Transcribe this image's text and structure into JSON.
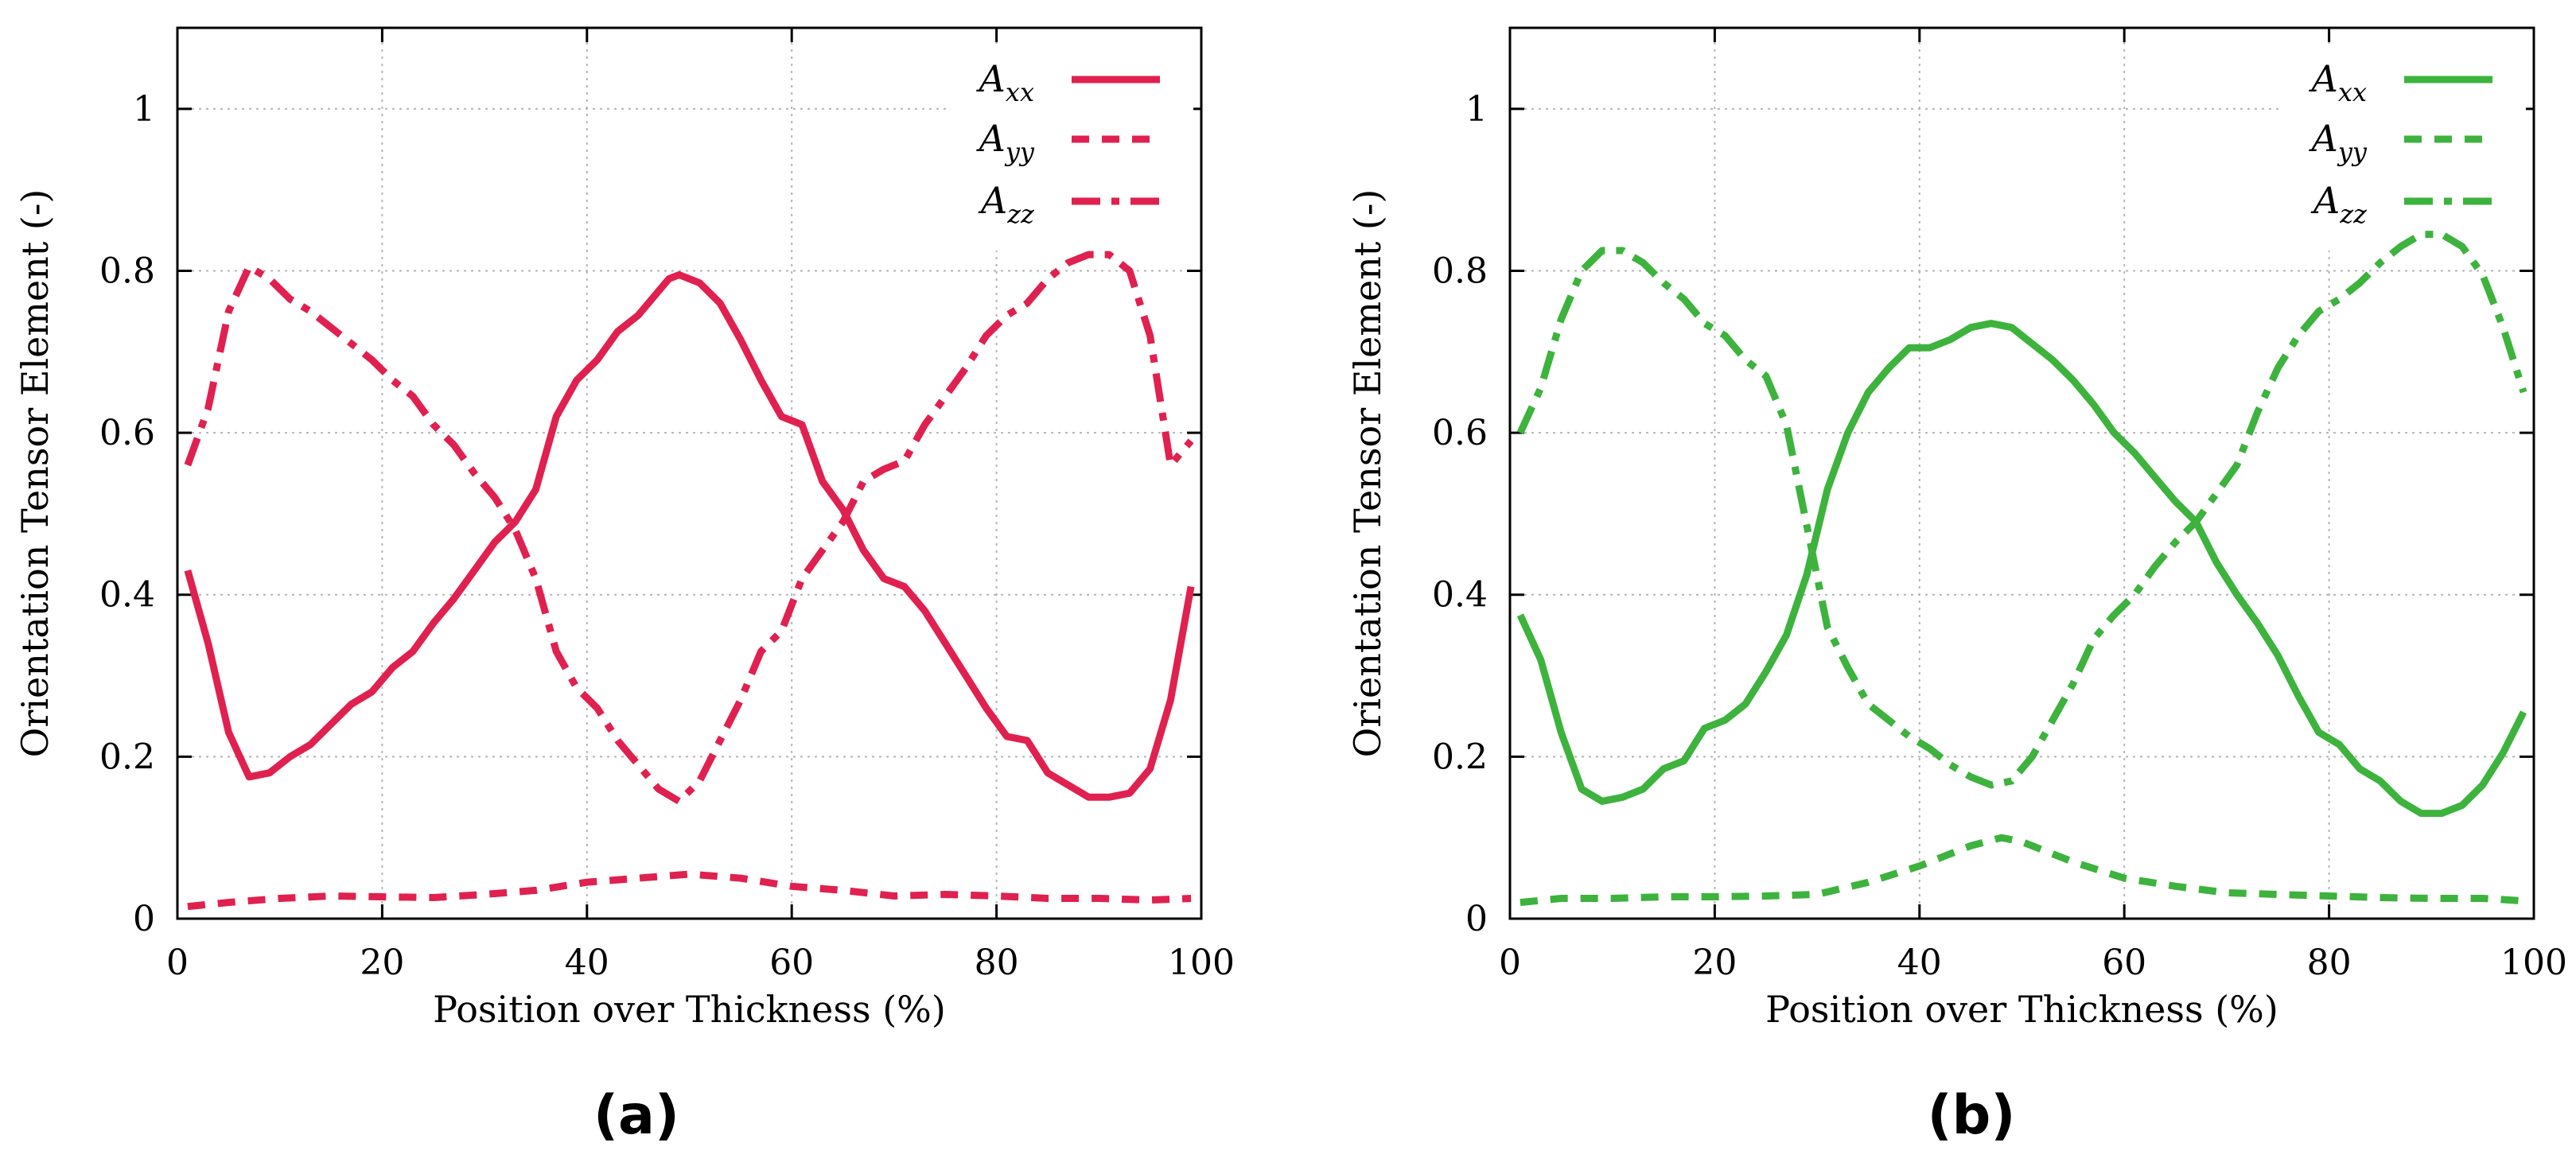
{
  "chart_data": [
    {
      "type": "line",
      "panel_label": "(a)",
      "color": "#e0214f",
      "xlabel": "Position over Thickness (%)",
      "ylabel": "Orientation Tensor Element (-)",
      "xlim": [
        0,
        100
      ],
      "ylim": [
        0,
        1.1
      ],
      "xticks": [
        "0",
        "20",
        "40",
        "60",
        "80",
        "100"
      ],
      "yticks": [
        "0",
        "0.2",
        "0.4",
        "0.6",
        "0.8",
        "1"
      ],
      "grid": true,
      "legend_position": "top-right",
      "series": [
        {
          "name": "A_xx",
          "label_main": "A",
          "label_sub": "xx",
          "style": "solid",
          "x": [
            1,
            3,
            5,
            7,
            9,
            11,
            13,
            15,
            17,
            19,
            21,
            23,
            25,
            27,
            29,
            31,
            33,
            35,
            37,
            39,
            41,
            43,
            45,
            47,
            48,
            49,
            51,
            53,
            55,
            57,
            59,
            61,
            63,
            65,
            67,
            69,
            71,
            73,
            75,
            77,
            79,
            81,
            83,
            85,
            87,
            89,
            91,
            93,
            95,
            97,
            99
          ],
          "values": [
            0.43,
            0.34,
            0.23,
            0.175,
            0.18,
            0.2,
            0.215,
            0.24,
            0.265,
            0.28,
            0.31,
            0.33,
            0.365,
            0.395,
            0.43,
            0.465,
            0.49,
            0.53,
            0.62,
            0.665,
            0.69,
            0.725,
            0.745,
            0.775,
            0.79,
            0.795,
            0.785,
            0.76,
            0.715,
            0.665,
            0.62,
            0.61,
            0.54,
            0.505,
            0.455,
            0.42,
            0.41,
            0.38,
            0.34,
            0.3,
            0.26,
            0.225,
            0.22,
            0.18,
            0.165,
            0.15,
            0.15,
            0.155,
            0.185,
            0.27,
            0.41
          ]
        },
        {
          "name": "A_yy",
          "label_main": "A",
          "label_sub": "yy",
          "style": "dashed",
          "x": [
            1,
            5,
            10,
            15,
            20,
            25,
            30,
            35,
            40,
            45,
            50,
            55,
            60,
            65,
            70,
            75,
            80,
            85,
            90,
            95,
            99
          ],
          "values": [
            0.015,
            0.02,
            0.025,
            0.028,
            0.027,
            0.026,
            0.03,
            0.035,
            0.045,
            0.05,
            0.055,
            0.05,
            0.04,
            0.035,
            0.028,
            0.03,
            0.028,
            0.025,
            0.025,
            0.023,
            0.025
          ]
        },
        {
          "name": "A_zz",
          "label_main": "A",
          "label_sub": "zz",
          "style": "dash-dot",
          "x": [
            1,
            3,
            5,
            7,
            9,
            11,
            13,
            15,
            17,
            19,
            21,
            23,
            25,
            27,
            29,
            31,
            33,
            35,
            37,
            39,
            41,
            43,
            45,
            47,
            49,
            51,
            53,
            55,
            57,
            59,
            61,
            63,
            65,
            67,
            69,
            71,
            73,
            75,
            77,
            79,
            81,
            83,
            85,
            87,
            89,
            91,
            93,
            95,
            97,
            99
          ],
          "values": [
            0.56,
            0.63,
            0.75,
            0.805,
            0.79,
            0.765,
            0.75,
            0.73,
            0.71,
            0.69,
            0.665,
            0.645,
            0.61,
            0.585,
            0.55,
            0.52,
            0.48,
            0.42,
            0.33,
            0.285,
            0.26,
            0.22,
            0.19,
            0.16,
            0.145,
            0.17,
            0.22,
            0.27,
            0.33,
            0.355,
            0.42,
            0.455,
            0.49,
            0.54,
            0.555,
            0.565,
            0.61,
            0.645,
            0.68,
            0.72,
            0.745,
            0.76,
            0.79,
            0.81,
            0.82,
            0.82,
            0.8,
            0.72,
            0.56,
            0.59
          ]
        }
      ]
    },
    {
      "type": "line",
      "panel_label": "(b)",
      "color": "#3db33d",
      "xlabel": "Position over Thickness (%)",
      "ylabel": "Orientation Tensor Element (-)",
      "xlim": [
        0,
        100
      ],
      "ylim": [
        0,
        1.1
      ],
      "xticks": [
        "0",
        "20",
        "40",
        "60",
        "80",
        "100"
      ],
      "yticks": [
        "0",
        "0.2",
        "0.4",
        "0.6",
        "0.8",
        "1"
      ],
      "grid": true,
      "legend_position": "top-right",
      "series": [
        {
          "name": "A_xx",
          "label_main": "A",
          "label_sub": "xx",
          "style": "solid",
          "x": [
            1,
            3,
            5,
            7,
            9,
            11,
            13,
            15,
            17,
            19,
            21,
            23,
            25,
            27,
            29,
            31,
            33,
            35,
            37,
            39,
            41,
            43,
            45,
            47,
            49,
            51,
            53,
            55,
            57,
            59,
            61,
            63,
            65,
            67,
            69,
            71,
            73,
            75,
            77,
            79,
            81,
            83,
            85,
            87,
            89,
            91,
            93,
            95,
            97,
            99
          ],
          "values": [
            0.375,
            0.32,
            0.23,
            0.16,
            0.145,
            0.15,
            0.16,
            0.185,
            0.195,
            0.235,
            0.245,
            0.265,
            0.305,
            0.35,
            0.425,
            0.53,
            0.6,
            0.65,
            0.68,
            0.705,
            0.705,
            0.715,
            0.73,
            0.735,
            0.73,
            0.71,
            0.69,
            0.665,
            0.635,
            0.6,
            0.575,
            0.545,
            0.515,
            0.49,
            0.44,
            0.4,
            0.365,
            0.325,
            0.275,
            0.23,
            0.215,
            0.185,
            0.17,
            0.145,
            0.13,
            0.13,
            0.14,
            0.165,
            0.205,
            0.255
          ]
        },
        {
          "name": "A_yy",
          "label_main": "A",
          "label_sub": "yy",
          "style": "dashed",
          "x": [
            1,
            5,
            10,
            15,
            20,
            25,
            30,
            35,
            40,
            45,
            48,
            50,
            55,
            60,
            65,
            70,
            75,
            80,
            85,
            90,
            95,
            99
          ],
          "values": [
            0.02,
            0.025,
            0.025,
            0.027,
            0.027,
            0.028,
            0.03,
            0.045,
            0.065,
            0.09,
            0.1,
            0.095,
            0.07,
            0.05,
            0.04,
            0.032,
            0.03,
            0.028,
            0.026,
            0.025,
            0.025,
            0.022
          ]
        },
        {
          "name": "A_zz",
          "label_main": "A",
          "label_sub": "zz",
          "style": "dash-dot",
          "x": [
            1,
            3,
            5,
            7,
            9,
            11,
            13,
            15,
            17,
            19,
            21,
            23,
            25,
            27,
            29,
            31,
            33,
            35,
            37,
            39,
            41,
            43,
            45,
            47,
            49,
            51,
            53,
            55,
            57,
            59,
            61,
            63,
            65,
            67,
            69,
            71,
            73,
            75,
            77,
            79,
            81,
            83,
            85,
            87,
            89,
            91,
            93,
            95,
            97,
            99
          ],
          "values": [
            0.6,
            0.655,
            0.74,
            0.8,
            0.825,
            0.825,
            0.81,
            0.785,
            0.765,
            0.735,
            0.72,
            0.69,
            0.67,
            0.61,
            0.485,
            0.36,
            0.31,
            0.265,
            0.245,
            0.225,
            0.21,
            0.19,
            0.175,
            0.165,
            0.17,
            0.2,
            0.245,
            0.29,
            0.345,
            0.375,
            0.4,
            0.435,
            0.465,
            0.49,
            0.525,
            0.56,
            0.625,
            0.68,
            0.72,
            0.75,
            0.765,
            0.785,
            0.81,
            0.83,
            0.845,
            0.845,
            0.83,
            0.795,
            0.73,
            0.65
          ]
        }
      ]
    }
  ]
}
